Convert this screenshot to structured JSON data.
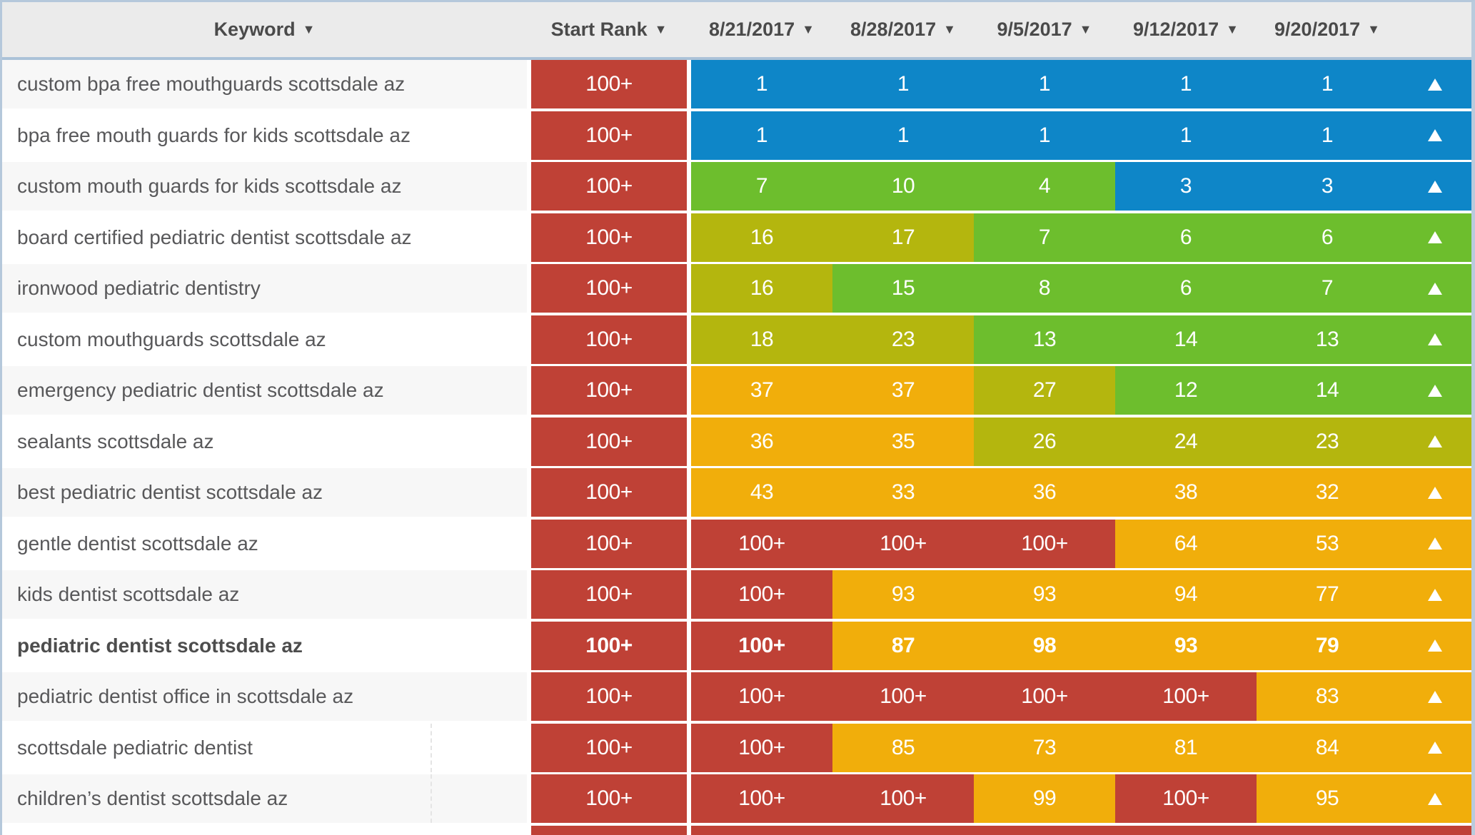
{
  "colors": {
    "blue": "#0e86c8",
    "green": "#6dbe2d",
    "olive": "#b4b60e",
    "amber": "#f1ae0b",
    "red": "#bf4136",
    "header_bg": "#ebebeb",
    "row_shade_bg": "#f7f7f7",
    "table_border": "#b5c8db"
  },
  "header": {
    "sort_icon": "▼",
    "columns": [
      {
        "id": "keyword",
        "label": "Keyword"
      },
      {
        "id": "start_rank",
        "label": "Start Rank"
      },
      {
        "id": "date1",
        "label": "8/21/2017"
      },
      {
        "id": "date2",
        "label": "8/28/2017"
      },
      {
        "id": "date3",
        "label": "9/5/2017"
      },
      {
        "id": "date4",
        "label": "9/12/2017"
      },
      {
        "id": "date5",
        "label": "9/20/2017"
      }
    ]
  },
  "rows": [
    {
      "keyword": "custom bpa free mouthguards scottsdale az",
      "bold": false,
      "start_rank": "100+",
      "ranks": [
        {
          "value": "1",
          "color": "blue"
        },
        {
          "value": "1",
          "color": "blue"
        },
        {
          "value": "1",
          "color": "blue"
        },
        {
          "value": "1",
          "color": "blue"
        },
        {
          "value": "1",
          "color": "blue"
        }
      ],
      "trend": "up",
      "trend_color": "blue"
    },
    {
      "keyword": "bpa free mouth guards for kids scottsdale az",
      "bold": false,
      "start_rank": "100+",
      "ranks": [
        {
          "value": "1",
          "color": "blue"
        },
        {
          "value": "1",
          "color": "blue"
        },
        {
          "value": "1",
          "color": "blue"
        },
        {
          "value": "1",
          "color": "blue"
        },
        {
          "value": "1",
          "color": "blue"
        }
      ],
      "trend": "up",
      "trend_color": "blue"
    },
    {
      "keyword": "custom mouth guards for kids scottsdale az",
      "bold": false,
      "start_rank": "100+",
      "ranks": [
        {
          "value": "7",
          "color": "green"
        },
        {
          "value": "10",
          "color": "green"
        },
        {
          "value": "4",
          "color": "green"
        },
        {
          "value": "3",
          "color": "blue"
        },
        {
          "value": "3",
          "color": "blue"
        }
      ],
      "trend": "up",
      "trend_color": "blue"
    },
    {
      "keyword": "board certified pediatric dentist scottsdale az",
      "bold": false,
      "start_rank": "100+",
      "ranks": [
        {
          "value": "16",
          "color": "olive"
        },
        {
          "value": "17",
          "color": "olive"
        },
        {
          "value": "7",
          "color": "green"
        },
        {
          "value": "6",
          "color": "green"
        },
        {
          "value": "6",
          "color": "green"
        }
      ],
      "trend": "up",
      "trend_color": "green"
    },
    {
      "keyword": "ironwood pediatric dentistry",
      "bold": false,
      "start_rank": "100+",
      "ranks": [
        {
          "value": "16",
          "color": "olive"
        },
        {
          "value": "15",
          "color": "green"
        },
        {
          "value": "8",
          "color": "green"
        },
        {
          "value": "6",
          "color": "green"
        },
        {
          "value": "7",
          "color": "green"
        }
      ],
      "trend": "up",
      "trend_color": "green"
    },
    {
      "keyword": "custom mouthguards scottsdale az",
      "bold": false,
      "start_rank": "100+",
      "ranks": [
        {
          "value": "18",
          "color": "olive"
        },
        {
          "value": "23",
          "color": "olive"
        },
        {
          "value": "13",
          "color": "green"
        },
        {
          "value": "14",
          "color": "green"
        },
        {
          "value": "13",
          "color": "green"
        }
      ],
      "trend": "up",
      "trend_color": "green"
    },
    {
      "keyword": "emergency pediatric dentist scottsdale az",
      "bold": false,
      "start_rank": "100+",
      "ranks": [
        {
          "value": "37",
          "color": "amber"
        },
        {
          "value": "37",
          "color": "amber"
        },
        {
          "value": "27",
          "color": "olive"
        },
        {
          "value": "12",
          "color": "green"
        },
        {
          "value": "14",
          "color": "green"
        }
      ],
      "trend": "up",
      "trend_color": "green"
    },
    {
      "keyword": "sealants scottsdale az",
      "bold": false,
      "start_rank": "100+",
      "ranks": [
        {
          "value": "36",
          "color": "amber"
        },
        {
          "value": "35",
          "color": "amber"
        },
        {
          "value": "26",
          "color": "olive"
        },
        {
          "value": "24",
          "color": "olive"
        },
        {
          "value": "23",
          "color": "olive"
        }
      ],
      "trend": "up",
      "trend_color": "olive"
    },
    {
      "keyword": "best pediatric dentist scottsdale az",
      "bold": false,
      "start_rank": "100+",
      "ranks": [
        {
          "value": "43",
          "color": "amber"
        },
        {
          "value": "33",
          "color": "amber"
        },
        {
          "value": "36",
          "color": "amber"
        },
        {
          "value": "38",
          "color": "amber"
        },
        {
          "value": "32",
          "color": "amber"
        }
      ],
      "trend": "up",
      "trend_color": "amber"
    },
    {
      "keyword": "gentle dentist scottsdale az",
      "bold": false,
      "start_rank": "100+",
      "ranks": [
        {
          "value": "100+",
          "color": "red"
        },
        {
          "value": "100+",
          "color": "red"
        },
        {
          "value": "100+",
          "color": "red"
        },
        {
          "value": "64",
          "color": "amber"
        },
        {
          "value": "53",
          "color": "amber"
        }
      ],
      "trend": "up",
      "trend_color": "amber"
    },
    {
      "keyword": "kids dentist scottsdale az",
      "bold": false,
      "start_rank": "100+",
      "ranks": [
        {
          "value": "100+",
          "color": "red"
        },
        {
          "value": "93",
          "color": "amber"
        },
        {
          "value": "93",
          "color": "amber"
        },
        {
          "value": "94",
          "color": "amber"
        },
        {
          "value": "77",
          "color": "amber"
        }
      ],
      "trend": "up",
      "trend_color": "amber"
    },
    {
      "keyword": "pediatric dentist scottsdale az",
      "bold": true,
      "start_rank": "100+",
      "ranks": [
        {
          "value": "100+",
          "color": "red"
        },
        {
          "value": "87",
          "color": "amber"
        },
        {
          "value": "98",
          "color": "amber"
        },
        {
          "value": "93",
          "color": "amber"
        },
        {
          "value": "79",
          "color": "amber"
        }
      ],
      "trend": "up",
      "trend_color": "amber"
    },
    {
      "keyword": "pediatric dentist office in scottsdale az",
      "bold": false,
      "start_rank": "100+",
      "ranks": [
        {
          "value": "100+",
          "color": "red"
        },
        {
          "value": "100+",
          "color": "red"
        },
        {
          "value": "100+",
          "color": "red"
        },
        {
          "value": "100+",
          "color": "red"
        },
        {
          "value": "83",
          "color": "amber"
        }
      ],
      "trend": "up",
      "trend_color": "amber"
    },
    {
      "keyword": "scottsdale pediatric dentist",
      "bold": false,
      "start_rank": "100+",
      "keyword_divider": true,
      "ranks": [
        {
          "value": "100+",
          "color": "red"
        },
        {
          "value": "85",
          "color": "amber"
        },
        {
          "value": "73",
          "color": "amber"
        },
        {
          "value": "81",
          "color": "amber"
        },
        {
          "value": "84",
          "color": "amber"
        }
      ],
      "trend": "up",
      "trend_color": "amber"
    },
    {
      "keyword": "children’s dentist scottsdale az",
      "bold": false,
      "start_rank": "100+",
      "keyword_divider": true,
      "ranks": [
        {
          "value": "100+",
          "color": "red"
        },
        {
          "value": "100+",
          "color": "red"
        },
        {
          "value": "99",
          "color": "amber"
        },
        {
          "value": "100+",
          "color": "red"
        },
        {
          "value": "95",
          "color": "amber"
        }
      ],
      "trend": "up",
      "trend_color": "amber"
    },
    {
      "keyword": "",
      "bold": false,
      "start_rank": "",
      "partial": true,
      "ranks": [
        {
          "value": "",
          "color": "red"
        },
        {
          "value": "",
          "color": "red"
        },
        {
          "value": "",
          "color": "red"
        },
        {
          "value": "",
          "color": "red"
        },
        {
          "value": "",
          "color": "red"
        }
      ],
      "trend": null,
      "trend_color": "red"
    }
  ]
}
